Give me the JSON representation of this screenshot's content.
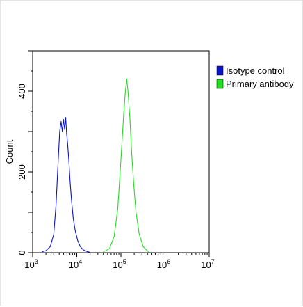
{
  "chart_data": {
    "type": "line",
    "title": "",
    "xlabel": "",
    "ylabel": "Count",
    "x_scale": "log",
    "xlim": [
      1000,
      10000000
    ],
    "ylim": [
      0,
      500
    ],
    "x_ticks": [
      {
        "value": 1000,
        "base": "10",
        "exp": "3"
      },
      {
        "value": 10000,
        "base": "10",
        "exp": "4"
      },
      {
        "value": 100000,
        "base": "10",
        "exp": "5"
      },
      {
        "value": 1000000,
        "base": "10",
        "exp": "6"
      },
      {
        "value": 10000000,
        "base": "10",
        "exp": "7"
      }
    ],
    "y_ticks": [
      "0",
      "200",
      "400"
    ],
    "y_tick_values": [
      0,
      200,
      400
    ],
    "grid": false,
    "legend_position": "top-right",
    "series": [
      {
        "name": "Isotype control",
        "color": "#0a14c8",
        "x": [
          1600,
          2000,
          2500,
          3000,
          3400,
          3800,
          4100,
          4400,
          4700,
          5000,
          5300,
          5600,
          5900,
          6200,
          6600,
          7000,
          7600,
          8300,
          9200,
          10500,
          12000,
          14000,
          17000,
          20000
        ],
        "y": [
          2,
          5,
          15,
          45,
          120,
          230,
          300,
          325,
          300,
          330,
          305,
          335,
          295,
          270,
          230,
          180,
          130,
          85,
          55,
          30,
          15,
          7,
          3,
          1
        ]
      },
      {
        "name": "Primary antibody",
        "color": "#22dd22",
        "x": [
          40000,
          55000,
          70000,
          85000,
          100000,
          115000,
          125000,
          135000,
          145000,
          160000,
          175000,
          195000,
          220000,
          260000,
          320000,
          420000
        ],
        "y": [
          2,
          10,
          40,
          110,
          230,
          340,
          395,
          430,
          400,
          330,
          250,
          170,
          100,
          45,
          15,
          2
        ]
      }
    ]
  }
}
